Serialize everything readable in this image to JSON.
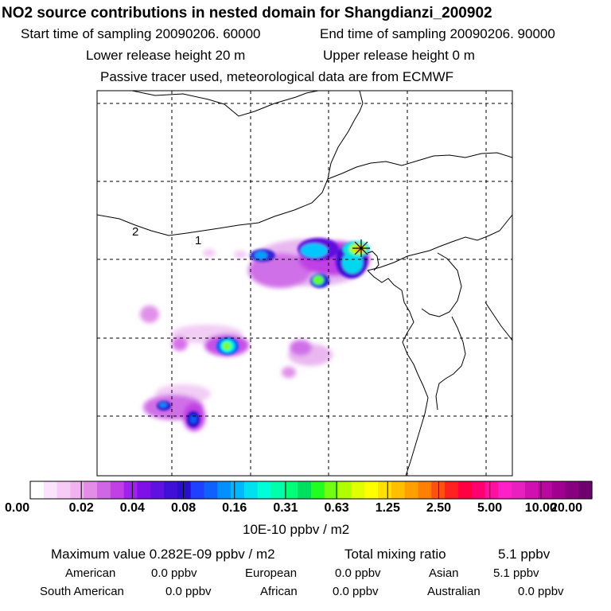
{
  "header": {
    "title": "NO2 source contributions in nested domain for Shangdianzi_200902",
    "start_label": "Start time of sampling 20090206. 60000",
    "end_label": "End time of sampling 20090206. 90000",
    "lower_label": "Lower release height   20 m",
    "upper_label": "Upper release height    0 m",
    "note": "Passive tracer used, meteorological data are from ECMWF"
  },
  "map": {
    "region_labels": [
      "2",
      "1"
    ],
    "receptor_marker": "asterisk-marker"
  },
  "colorbar": {
    "ticks": [
      "0.00",
      "0.02",
      "0.04",
      "0.08",
      "0.16",
      "0.31",
      "0.63",
      "1.25",
      "2.50",
      "5.00",
      "10.00",
      "20.00"
    ],
    "unit": "10E-10 ppbv / m2",
    "colors": [
      "#ffffff",
      "#fbe3fb",
      "#f6cbf6",
      "#f0b2f0",
      "#e38ce8",
      "#d166e4",
      "#c040e6",
      "#a020ee",
      "#8010e8",
      "#6010e0",
      "#4010d8",
      "#2a10cc",
      "#2040ff",
      "#1060ff",
      "#0090ff",
      "#00b8ff",
      "#00e0f0",
      "#00ffd8",
      "#00ffa8",
      "#00ff78",
      "#00e060",
      "#20ff20",
      "#70ff10",
      "#b0ff00",
      "#e0ff00",
      "#ffff00",
      "#ffe000",
      "#ffc000",
      "#ffa000",
      "#ff8000",
      "#ff5010",
      "#ff2020",
      "#ff0040",
      "#ff0070",
      "#ff10a0",
      "#ff20c8",
      "#e820c0",
      "#d010b0",
      "#b808a0",
      "#a00090",
      "#880080",
      "#700070"
    ]
  },
  "footer": {
    "max_label": "Maximum value  0.282E-09 ppbv / m2",
    "total_label": "Total mixing ratio",
    "total_value": "5.1 ppbv",
    "regions": [
      {
        "name": "American",
        "value": "0.0 ppbv"
      },
      {
        "name": "European",
        "value": "0.0 ppbv"
      },
      {
        "name": "Asian",
        "value": "5.1 ppbv"
      },
      {
        "name": "South American",
        "value": "0.0 ppbv"
      },
      {
        "name": "African",
        "value": "0.0 ppbv"
      },
      {
        "name": "Australian",
        "value": "0.0 ppbv"
      }
    ]
  }
}
